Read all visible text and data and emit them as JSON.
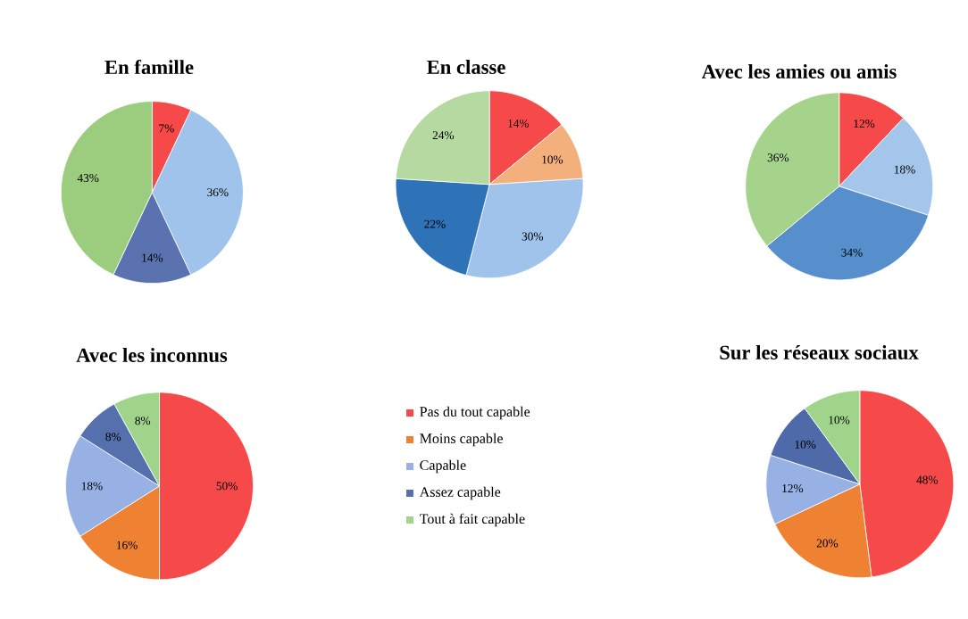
{
  "chart_data": [
    {
      "type": "pie",
      "title": "En famille",
      "categories": [
        null,
        null,
        null,
        null
      ],
      "values": [
        7,
        36,
        14,
        43
      ],
      "value_labels": [
        "7%",
        "36%",
        "14%",
        "43%"
      ],
      "colors": [
        "#f64a4a",
        "#9fc3ea",
        "#5a73b0",
        "#9ccc7e"
      ]
    },
    {
      "type": "pie",
      "title": "En classe",
      "categories": [
        null,
        null,
        null,
        null,
        null
      ],
      "values": [
        14,
        10,
        30,
        22,
        24
      ],
      "value_labels": [
        "14%",
        "10%",
        "30%",
        "22%",
        "24%"
      ],
      "colors": [
        "#f64a4a",
        "#f4b07c",
        "#9fc3ea",
        "#2e73b8",
        "#b5d9a0"
      ]
    },
    {
      "type": "pie",
      "title": "Avec les amies ou amis",
      "categories": [
        null,
        null,
        null,
        null
      ],
      "values": [
        12,
        18,
        34,
        36
      ],
      "value_labels": [
        "12%",
        "18%",
        "34%",
        "36%"
      ],
      "colors": [
        "#f64a4a",
        "#a4c6ea",
        "#568fcc",
        "#a6d38c"
      ]
    },
    {
      "type": "pie",
      "title": "Avec les inconnus",
      "categories": [
        "Pas du tout capable",
        "Moins capable",
        "Capable",
        "Assez capable",
        "Tout à fait capable"
      ],
      "values": [
        50,
        16,
        18,
        8,
        8
      ],
      "value_labels": [
        "50%",
        "16%",
        "18%",
        "8%",
        "8%"
      ],
      "colors": [
        "#f64a4a",
        "#ee8232",
        "#98b1e4",
        "#5570ac",
        "#9fd48a"
      ],
      "legend": "right"
    },
    {
      "type": "pie",
      "title": "Sur les réseaux sociaux",
      "categories": [
        null,
        null,
        null,
        null,
        null
      ],
      "values": [
        48,
        20,
        12,
        10,
        10
      ],
      "value_labels": [
        "48%",
        "20%",
        "12%",
        "10%",
        "10%"
      ],
      "colors": [
        "#f64a4a",
        "#ee8232",
        "#98b1e4",
        "#4e6aa8",
        "#9fd48a"
      ]
    }
  ]
}
